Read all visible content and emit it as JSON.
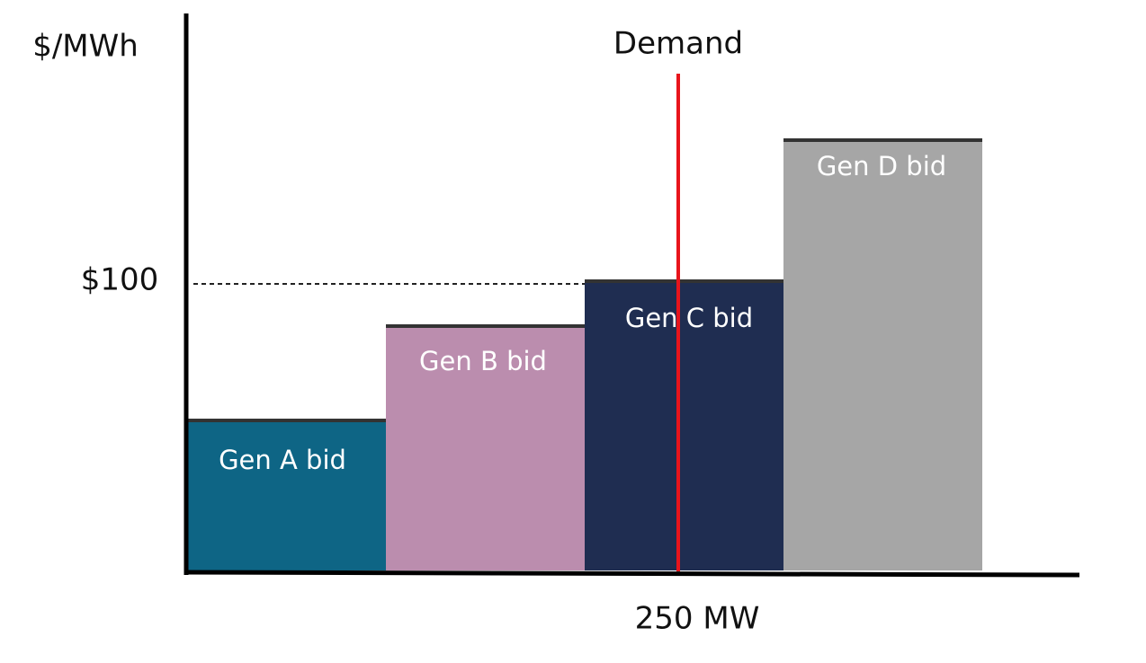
{
  "axis": {
    "y_label": "$/MWh",
    "price_marker": "$100",
    "x_marker": "250 MW"
  },
  "demand": {
    "label": "Demand"
  },
  "bids": [
    {
      "label": "Gen A bid"
    },
    {
      "label": "Gen B bid"
    },
    {
      "label": "Gen C bid"
    },
    {
      "label": "Gen D bid"
    }
  ]
}
